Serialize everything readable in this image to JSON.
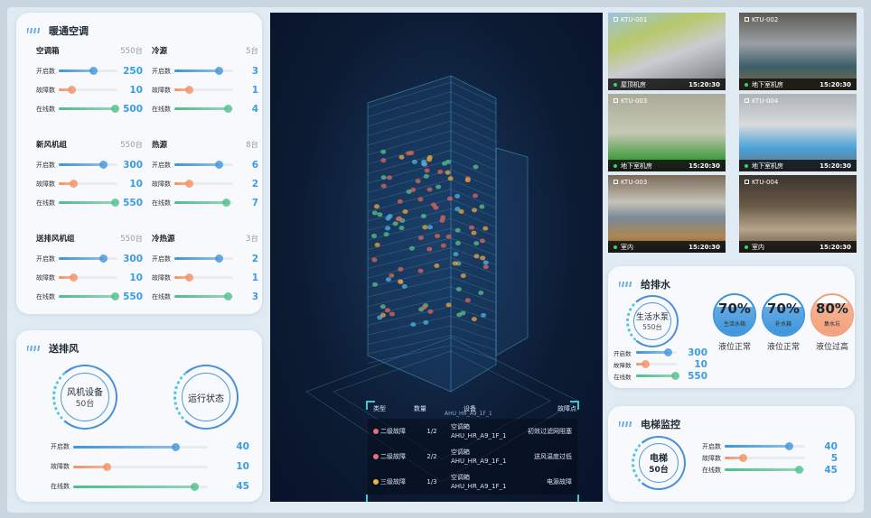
{
  "hvac": {
    "title": "暖通空调",
    "groups": [
      {
        "name": "空调箱",
        "count": "550台",
        "rows": [
          {
            "label": "开启数",
            "value": "250",
            "level": 0.58,
            "kind": "open"
          },
          {
            "label": "故障数",
            "value": "10",
            "level": 0.22,
            "kind": "fault"
          },
          {
            "label": "在线数",
            "value": "500",
            "level": 0.95,
            "kind": "online"
          }
        ]
      },
      {
        "name": "冷源",
        "count": "5台",
        "rows": [
          {
            "label": "开启数",
            "value": "3",
            "level": 0.76,
            "kind": "open"
          },
          {
            "label": "故障数",
            "value": "1",
            "level": 0.24,
            "kind": "fault"
          },
          {
            "label": "在线数",
            "value": "4",
            "level": 0.9,
            "kind": "online"
          }
        ]
      },
      {
        "name": "新风机组",
        "count": "550台",
        "rows": [
          {
            "label": "开启数",
            "value": "300",
            "level": 0.76,
            "kind": "open"
          },
          {
            "label": "故障数",
            "value": "10",
            "level": 0.24,
            "kind": "fault"
          },
          {
            "label": "在线数",
            "value": "550",
            "level": 0.95,
            "kind": "online"
          }
        ]
      },
      {
        "name": "热源",
        "count": "8台",
        "rows": [
          {
            "label": "开启数",
            "value": "6",
            "level": 0.75,
            "kind": "open"
          },
          {
            "label": "故障数",
            "value": "2",
            "level": 0.24,
            "kind": "fault"
          },
          {
            "label": "在线数",
            "value": "7",
            "level": 0.88,
            "kind": "online"
          }
        ]
      },
      {
        "name": "送排风机组",
        "count": "550台",
        "rows": [
          {
            "label": "开启数",
            "value": "300",
            "level": 0.76,
            "kind": "open"
          },
          {
            "label": "故障数",
            "value": "10",
            "level": 0.24,
            "kind": "fault"
          },
          {
            "label": "在线数",
            "value": "550",
            "level": 0.95,
            "kind": "online"
          }
        ]
      },
      {
        "name": "冷热源",
        "count": "3台",
        "rows": [
          {
            "label": "开启数",
            "value": "2",
            "level": 0.75,
            "kind": "open"
          },
          {
            "label": "故障数",
            "value": "1",
            "level": 0.24,
            "kind": "fault"
          },
          {
            "label": "在线数",
            "value": "3",
            "level": 0.9,
            "kind": "online"
          }
        ]
      }
    ]
  },
  "ventilation": {
    "title": "送排风",
    "device_label": "风机设备",
    "device_count": "50台",
    "status_label": "运行状态",
    "rows": [
      {
        "label": "开启数",
        "value": "40",
        "level": 0.76,
        "kind": "open"
      },
      {
        "label": "故障数",
        "value": "10",
        "level": 0.25,
        "kind": "fault"
      },
      {
        "label": "在线数",
        "value": "45",
        "level": 0.9,
        "kind": "online"
      }
    ]
  },
  "fault_table": {
    "headers": [
      "类型",
      "数量",
      "设备",
      "故障点"
    ],
    "scroll_partial": "AHU_HR_A9_1F_1",
    "rows": [
      {
        "type": "二级故障",
        "color": "#e8707a",
        "qty": "1/2",
        "device": "空调箱",
        "device_id": "AHU_HR_A9_1F_1",
        "point": "初效过滤网阻塞"
      },
      {
        "type": "二级故障",
        "color": "#e8707a",
        "qty": "2/2",
        "device": "空调箱",
        "device_id": "AHU_HR_A9_1F_1",
        "point": "送风温度过低"
      },
      {
        "type": "三级故障",
        "color": "#f2b531",
        "qty": "1/3",
        "device": "空调箱",
        "device_id": "AHU_HR_A9_1F_1",
        "point": "电源故障"
      }
    ]
  },
  "cameras": [
    {
      "id": "KTU-001",
      "location": "屋顶机房",
      "time": "15:20:30"
    },
    {
      "id": "KTU-002",
      "location": "地下室机房",
      "time": "15:20:30"
    },
    {
      "id": "KTU-003",
      "location": "地下室机房",
      "time": "15:20:30"
    },
    {
      "id": "KTU-004",
      "location": "地下室机房",
      "time": "15:20:30"
    },
    {
      "id": "KTU-003",
      "location": "室内",
      "time": "15:20:30"
    },
    {
      "id": "KTU-004",
      "location": "室内",
      "time": "15:20:30"
    }
  ],
  "water": {
    "title": "给排水",
    "pump_label": "生活水泵",
    "pump_count": "550台",
    "rows": [
      {
        "label": "开启数",
        "value": "300",
        "level": 0.78,
        "kind": "open"
      },
      {
        "label": "故障数",
        "value": "10",
        "level": 0.22,
        "kind": "fault"
      },
      {
        "label": "在线数",
        "value": "550",
        "level": 0.95,
        "kind": "online"
      }
    ],
    "tanks": [
      {
        "pct": "70%",
        "level": 0.7,
        "name": "生活水箱",
        "status": "液位正常",
        "color": "#3d95dc"
      },
      {
        "pct": "70%",
        "level": 0.7,
        "name": "补水箱",
        "status": "液位正常",
        "color": "#3d95dc"
      },
      {
        "pct": "80%",
        "level": 0.8,
        "name": "集水坑",
        "status": "液位过高",
        "color": "#f3a17a"
      }
    ]
  },
  "elevator": {
    "title": "电梯监控",
    "label": "电梯",
    "count": "50台",
    "rows": [
      {
        "label": "开启数",
        "value": "40",
        "level": 0.8,
        "kind": "open"
      },
      {
        "label": "故障数",
        "value": "5",
        "level": 0.22,
        "kind": "fault"
      },
      {
        "label": "在线数",
        "value": "45",
        "level": 0.92,
        "kind": "online"
      }
    ]
  },
  "colors": {
    "open": "#3d95dc",
    "fault": "#f29060",
    "online": "#4cbf8a",
    "accent": "#3d9be0"
  }
}
